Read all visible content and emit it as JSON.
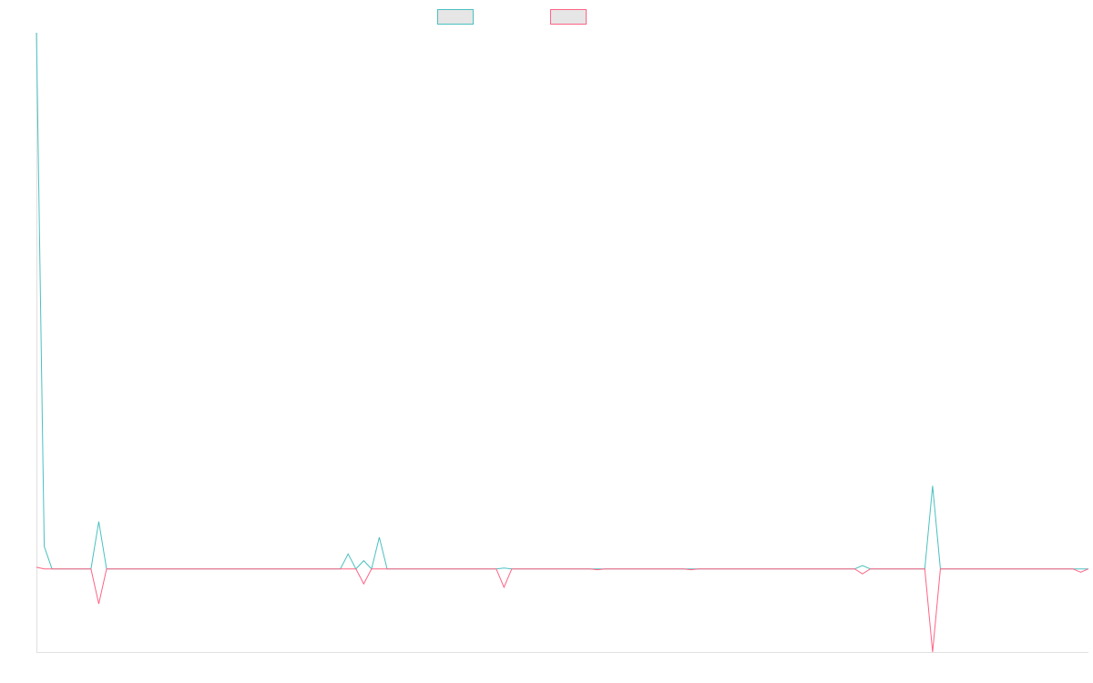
{
  "colors": {
    "series_a": "#4bc0c0",
    "series_b": "#ff6384",
    "swatch_fill": "#e6e6e6",
    "axis": "#e0e0e0"
  },
  "chart_data": {
    "type": "line",
    "title": "",
    "xlabel": "",
    "ylabel": "",
    "grid": false,
    "legend": {
      "position": "top",
      "entries": [
        "",
        ""
      ]
    },
    "x": [
      0,
      1,
      2,
      3,
      4,
      5,
      6,
      7,
      8,
      9,
      10,
      11,
      12,
      13,
      14,
      15,
      16,
      17,
      18,
      19,
      20,
      21,
      22,
      23,
      24,
      25,
      26,
      27,
      28,
      29,
      30,
      31,
      32,
      33,
      34,
      35,
      36,
      37,
      38,
      39,
      40,
      41,
      42,
      43,
      44,
      45,
      46,
      47,
      48,
      49,
      50,
      51,
      52,
      53,
      54,
      55,
      56,
      57,
      58,
      59,
      60,
      61,
      62,
      63,
      64,
      65,
      66,
      67,
      68,
      69,
      70,
      71,
      72,
      73,
      74,
      75,
      76,
      77,
      78,
      79,
      80,
      81,
      82,
      83,
      84,
      85,
      86,
      87,
      88,
      89,
      90,
      91,
      92,
      93,
      94,
      95,
      96,
      97,
      98,
      99,
      100,
      101,
      102,
      103,
      104,
      105,
      106,
      107,
      108,
      109,
      110,
      111,
      112,
      113,
      114,
      115,
      116,
      117,
      118,
      119,
      120,
      121,
      122,
      123,
      124,
      125,
      126,
      127,
      128,
      129,
      130,
      131,
      132,
      133,
      134,
      135
    ],
    "ylim": [
      -100,
      645
    ],
    "series": [
      {
        "values": [
          645,
          27,
          0,
          0,
          0,
          0,
          0,
          0,
          57,
          0,
          0,
          0,
          0,
          0,
          0,
          0,
          0,
          0,
          0,
          0,
          0,
          0,
          0,
          0,
          0,
          0,
          0,
          0,
          0,
          0,
          0,
          0,
          0,
          0,
          0,
          0,
          0,
          0,
          0,
          0,
          18,
          0,
          10,
          0,
          38,
          0,
          0,
          0,
          0,
          0,
          0,
          0,
          0,
          0,
          0,
          0,
          0,
          0,
          0,
          0,
          1,
          0,
          0,
          0,
          0,
          0,
          0,
          0,
          0,
          0,
          0,
          0,
          0,
          0,
          0,
          0,
          0,
          0,
          0,
          0,
          0,
          0,
          0,
          0,
          0,
          0,
          0,
          0,
          0,
          0,
          0,
          0,
          0,
          0,
          0,
          0,
          0,
          0,
          0,
          0,
          0,
          0,
          0,
          0,
          0,
          0,
          4,
          0,
          0,
          0,
          0,
          0,
          0,
          0,
          0,
          100,
          0,
          0,
          0,
          0,
          0,
          0,
          0,
          0,
          0,
          0,
          0,
          0,
          0,
          0,
          0,
          0,
          0,
          0,
          0,
          0
        ]
      },
      {
        "values": [
          2,
          0,
          0,
          0,
          0,
          0,
          0,
          0,
          -42,
          0,
          0,
          0,
          0,
          0,
          0,
          0,
          0,
          0,
          0,
          0,
          0,
          0,
          0,
          0,
          0,
          0,
          0,
          0,
          0,
          0,
          0,
          0,
          0,
          0,
          0,
          0,
          0,
          0,
          0,
          0,
          0,
          0,
          -18,
          0,
          0,
          0,
          0,
          0,
          0,
          0,
          0,
          0,
          0,
          0,
          0,
          0,
          0,
          0,
          0,
          0,
          -22,
          0,
          0,
          0,
          0,
          0,
          0,
          0,
          0,
          0,
          0,
          0,
          -1,
          0,
          0,
          0,
          0,
          0,
          0,
          0,
          0,
          0,
          0,
          0,
          -1,
          0,
          0,
          0,
          0,
          0,
          0,
          0,
          0,
          0,
          0,
          0,
          0,
          0,
          0,
          0,
          0,
          0,
          0,
          0,
          0,
          0,
          -6,
          0,
          0,
          0,
          0,
          0,
          0,
          0,
          0,
          -100,
          0,
          0,
          0,
          0,
          0,
          0,
          0,
          0,
          0,
          0,
          0,
          0,
          0,
          0,
          0,
          0,
          0,
          0,
          -4,
          0
        ]
      }
    ]
  }
}
